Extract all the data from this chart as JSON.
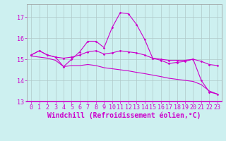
{
  "xlabel": "Windchill (Refroidissement éolien,°C)",
  "background_color": "#cdf0f0",
  "grid_color": "#b0c8c8",
  "line_color": "#cc00cc",
  "xlim": [
    -0.5,
    23.5
  ],
  "ylim": [
    13.0,
    17.6
  ],
  "yticks": [
    13,
    14,
    15,
    16,
    17
  ],
  "xticks": [
    0,
    1,
    2,
    3,
    4,
    5,
    6,
    7,
    8,
    9,
    10,
    11,
    12,
    13,
    14,
    15,
    16,
    17,
    18,
    19,
    20,
    21,
    22,
    23
  ],
  "series1_x": [
    0,
    1,
    2,
    3,
    4,
    5,
    6,
    7,
    8,
    9,
    10,
    11,
    12,
    13,
    14,
    15,
    16,
    17,
    18,
    19,
    20,
    21,
    22,
    23
  ],
  "series1_y": [
    15.2,
    15.4,
    15.2,
    15.1,
    15.05,
    15.1,
    15.2,
    15.35,
    15.4,
    15.25,
    15.3,
    15.4,
    15.35,
    15.3,
    15.2,
    15.05,
    15.0,
    14.95,
    14.95,
    14.95,
    15.0,
    14.9,
    14.75,
    14.7
  ],
  "series2_x": [
    0,
    1,
    2,
    3,
    4,
    5,
    6,
    7,
    8,
    9,
    10,
    11,
    12,
    13,
    14,
    15,
    16,
    17,
    18,
    19,
    20,
    21,
    22,
    23
  ],
  "series2_y": [
    15.2,
    15.4,
    15.2,
    15.1,
    14.65,
    15.0,
    15.35,
    15.85,
    15.85,
    15.55,
    16.5,
    17.2,
    17.15,
    16.65,
    15.95,
    15.05,
    14.95,
    14.8,
    14.85,
    14.9,
    15.0,
    14.0,
    13.45,
    13.35
  ],
  "series3_x": [
    0,
    1,
    2,
    3,
    4,
    5,
    6,
    7,
    8,
    9,
    10,
    11,
    12,
    13,
    14,
    15,
    16,
    17,
    18,
    19,
    20,
    21,
    22,
    23
  ],
  "series3_y": [
    15.15,
    15.1,
    15.05,
    14.95,
    14.65,
    14.7,
    14.7,
    14.75,
    14.7,
    14.6,
    14.55,
    14.5,
    14.45,
    14.38,
    14.32,
    14.25,
    14.18,
    14.1,
    14.05,
    14.0,
    13.95,
    13.8,
    13.5,
    13.35
  ],
  "ticklabel_fontsize": 6,
  "xlabel_fontsize": 7
}
